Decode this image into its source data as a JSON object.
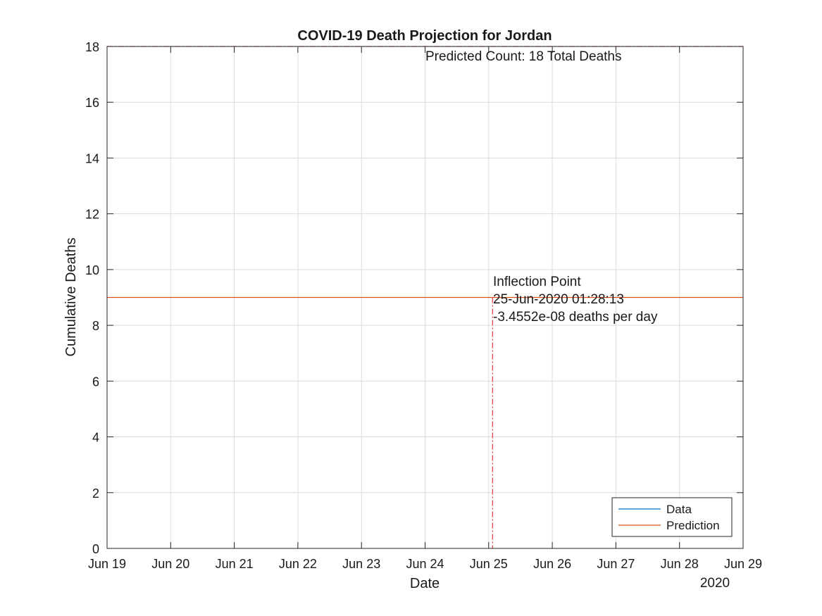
{
  "chart_data": {
    "type": "line",
    "title": "COVID-19 Death Projection for Jordan",
    "xlabel": "Date",
    "ylabel": "Cumulative Deaths",
    "x_tick_labels": [
      "Jun 19",
      "Jun 20",
      "Jun 21",
      "Jun 22",
      "Jun 23",
      "Jun 24",
      "Jun 25",
      "Jun 26",
      "Jun 27",
      "Jun 28",
      "Jun 29"
    ],
    "x_year_label": "2020",
    "x_range": [
      "2020-06-19",
      "2020-06-29"
    ],
    "ylim": [
      0,
      18
    ],
    "y_ticks": [
      0,
      2,
      4,
      6,
      8,
      10,
      12,
      14,
      16,
      18
    ],
    "grid": true,
    "legend_position": "bottom-right",
    "series": [
      {
        "name": "Data",
        "color": "#0072BD",
        "points": []
      },
      {
        "name": "Prediction",
        "color": "#D95319",
        "points": [
          [
            "2020-06-19",
            9
          ],
          [
            "2020-06-29",
            9
          ]
        ]
      }
    ],
    "reference_lines": {
      "predicted_total": 18,
      "inflection_date": "2020-06-25T01:28:13",
      "color": "#E8474B"
    },
    "annotations": {
      "predicted_count": "Predicted Count: 18 Total Deaths",
      "inflection_title": "Inflection Point",
      "inflection_date": "25-Jun-2020 01:28:13",
      "inflection_rate": "-3.4552e-08 deaths per day"
    }
  }
}
